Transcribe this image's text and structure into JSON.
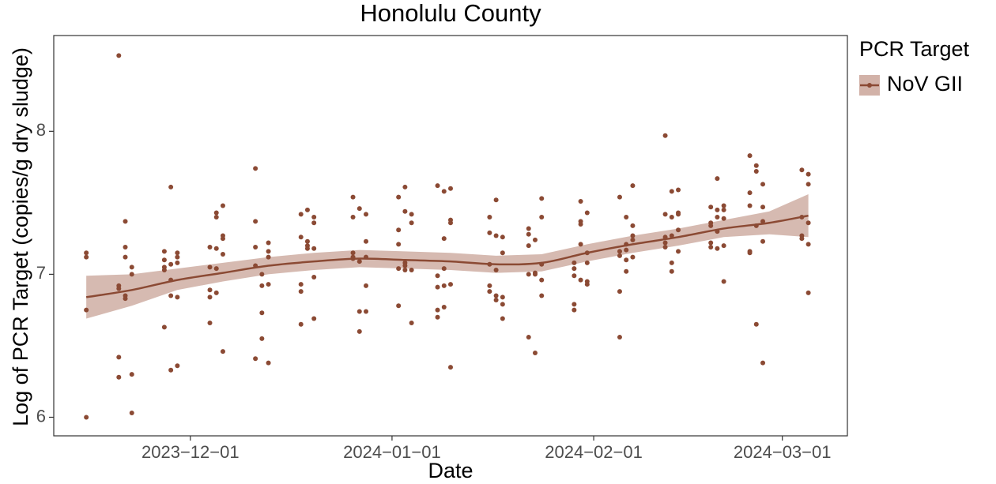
{
  "chart_data": {
    "type": "scatter-smooth",
    "title": "Honolulu County",
    "xlabel": "Date",
    "ylabel": "Log of PCR Target (copies/g dry sludge)",
    "legend_title": "PCR Target",
    "legend_position": "right",
    "xlim": [
      "2023-11-10",
      "2024-03-11"
    ],
    "xticks": [
      {
        "value": "2023-12-01",
        "label": "2023−12−01"
      },
      {
        "value": "2024-01-01",
        "label": "2024−01−01"
      },
      {
        "value": "2024-02-01",
        "label": "2024−02−01"
      },
      {
        "value": "2024-03-01",
        "label": "2024−03−01"
      }
    ],
    "ylim": [
      5.87,
      8.67
    ],
    "yticks": [
      6,
      7,
      8
    ],
    "grid": false,
    "series": [
      {
        "name": "NoV GII",
        "color": "#8b4a34",
        "band_color": "#d2b2a8",
        "x": [
          "2023-11-15",
          "2023-11-15",
          "2023-11-15",
          "2023-11-15",
          "2023-11-20",
          "2023-11-20",
          "2023-11-20",
          "2023-11-20",
          "2023-11-20",
          "2023-11-21",
          "2023-11-21",
          "2023-11-21",
          "2023-11-21",
          "2023-11-21",
          "2023-11-22",
          "2023-11-22",
          "2023-11-22",
          "2023-11-22",
          "2023-11-27",
          "2023-11-27",
          "2023-11-27",
          "2023-11-27",
          "2023-11-27",
          "2023-11-28",
          "2023-11-28",
          "2023-11-28",
          "2023-11-28",
          "2023-11-28",
          "2023-11-29",
          "2023-11-29",
          "2023-11-29",
          "2023-11-29",
          "2023-11-29",
          "2023-12-04",
          "2023-12-04",
          "2023-12-04",
          "2023-12-04",
          "2023-12-04",
          "2023-12-05",
          "2023-12-05",
          "2023-12-05",
          "2023-12-05",
          "2023-12-05",
          "2023-12-06",
          "2023-12-06",
          "2023-12-06",
          "2023-12-06",
          "2023-12-06",
          "2023-12-11",
          "2023-12-11",
          "2023-12-11",
          "2023-12-11",
          "2023-12-11",
          "2023-12-12",
          "2023-12-12",
          "2023-12-12",
          "2023-12-12",
          "2023-12-13",
          "2023-12-13",
          "2023-12-13",
          "2023-12-13",
          "2023-12-13",
          "2023-12-18",
          "2023-12-18",
          "2023-12-18",
          "2023-12-18",
          "2023-12-18",
          "2023-12-19",
          "2023-12-19",
          "2023-12-19",
          "2023-12-19",
          "2023-12-20",
          "2023-12-20",
          "2023-12-20",
          "2023-12-20",
          "2023-12-20",
          "2023-12-26",
          "2023-12-26",
          "2023-12-26",
          "2023-12-26",
          "2023-12-26",
          "2023-12-27",
          "2023-12-27",
          "2023-12-27",
          "2023-12-27",
          "2023-12-28",
          "2023-12-28",
          "2023-12-28",
          "2023-12-28",
          "2023-12-28",
          "2024-01-02",
          "2024-01-02",
          "2024-01-02",
          "2024-01-02",
          "2024-01-02",
          "2024-01-03",
          "2024-01-03",
          "2024-01-03",
          "2024-01-03",
          "2024-01-03",
          "2024-01-04",
          "2024-01-04",
          "2024-01-04",
          "2024-01-04",
          "2024-01-08",
          "2024-01-08",
          "2024-01-08",
          "2024-01-08",
          "2024-01-08",
          "2024-01-09",
          "2024-01-09",
          "2024-01-09",
          "2024-01-09",
          "2024-01-09",
          "2024-01-10",
          "2024-01-10",
          "2024-01-10",
          "2024-01-10",
          "2024-01-10",
          "2024-01-16",
          "2024-01-16",
          "2024-01-16",
          "2024-01-16",
          "2024-01-16",
          "2024-01-17",
          "2024-01-17",
          "2024-01-17",
          "2024-01-17",
          "2024-01-17",
          "2024-01-18",
          "2024-01-18",
          "2024-01-18",
          "2024-01-18",
          "2024-01-18",
          "2024-01-22",
          "2024-01-22",
          "2024-01-22",
          "2024-01-22",
          "2024-01-22",
          "2024-01-23",
          "2024-01-23",
          "2024-01-23",
          "2024-01-23",
          "2024-01-24",
          "2024-01-24",
          "2024-01-24",
          "2024-01-24",
          "2024-01-24",
          "2024-01-29",
          "2024-01-29",
          "2024-01-29",
          "2024-01-29",
          "2024-01-29",
          "2024-01-30",
          "2024-01-30",
          "2024-01-30",
          "2024-01-30",
          "2024-01-30",
          "2024-01-31",
          "2024-01-31",
          "2024-01-31",
          "2024-01-31",
          "2024-01-31",
          "2024-02-05",
          "2024-02-05",
          "2024-02-05",
          "2024-02-05",
          "2024-02-05",
          "2024-02-06",
          "2024-02-06",
          "2024-02-06",
          "2024-02-06",
          "2024-02-06",
          "2024-02-07",
          "2024-02-07",
          "2024-02-07",
          "2024-02-07",
          "2024-02-07",
          "2024-02-12",
          "2024-02-12",
          "2024-02-12",
          "2024-02-12",
          "2024-02-12",
          "2024-02-13",
          "2024-02-13",
          "2024-02-13",
          "2024-02-13",
          "2024-02-13",
          "2024-02-14",
          "2024-02-14",
          "2024-02-14",
          "2024-02-14",
          "2024-02-14",
          "2024-02-19",
          "2024-02-19",
          "2024-02-19",
          "2024-02-19",
          "2024-02-19",
          "2024-02-20",
          "2024-02-20",
          "2024-02-20",
          "2024-02-20",
          "2024-02-20",
          "2024-02-21",
          "2024-02-21",
          "2024-02-21",
          "2024-02-21",
          "2024-02-21",
          "2024-02-25",
          "2024-02-25",
          "2024-02-25",
          "2024-02-25",
          "2024-02-25",
          "2024-02-26",
          "2024-02-26",
          "2024-02-26",
          "2024-02-26",
          "2024-02-27",
          "2024-02-27",
          "2024-02-27",
          "2024-02-27",
          "2024-02-27",
          "2024-03-04",
          "2024-03-04",
          "2024-03-04",
          "2024-03-04",
          "2024-03-05",
          "2024-03-05",
          "2024-03-05",
          "2024-03-05",
          "2024-03-05"
        ],
        "values": [
          7.15,
          7.12,
          6.75,
          6.0,
          8.53,
          6.92,
          6.9,
          6.42,
          6.28,
          7.37,
          7.19,
          7.12,
          6.85,
          6.83,
          7.05,
          7.0,
          6.3,
          6.03,
          7.16,
          7.1,
          7.05,
          7.03,
          6.63,
          7.61,
          7.07,
          6.96,
          6.85,
          6.33,
          7.15,
          7.12,
          7.08,
          6.84,
          6.36,
          7.19,
          7.05,
          6.89,
          6.84,
          6.66,
          7.43,
          7.4,
          7.18,
          7.04,
          6.87,
          7.48,
          7.27,
          7.25,
          7.14,
          6.46,
          7.74,
          7.37,
          7.19,
          7.06,
          6.41,
          7.0,
          6.92,
          6.73,
          6.55,
          7.22,
          7.16,
          7.12,
          6.93,
          6.38,
          7.42,
          7.26,
          6.93,
          6.88,
          6.65,
          7.45,
          7.23,
          7.2,
          7.18,
          7.4,
          7.36,
          7.18,
          6.98,
          6.69,
          7.54,
          7.4,
          7.15,
          7.12,
          7.11,
          7.46,
          7.09,
          6.74,
          6.6,
          7.42,
          7.23,
          7.12,
          6.92,
          6.74,
          7.54,
          7.31,
          7.21,
          7.04,
          6.78,
          7.61,
          7.44,
          7.08,
          7.06,
          7.03,
          7.42,
          7.36,
          7.03,
          6.66,
          7.62,
          6.99,
          6.91,
          6.75,
          6.7,
          7.58,
          7.25,
          7.04,
          6.92,
          6.77,
          7.6,
          7.38,
          7.36,
          6.93,
          6.35,
          7.4,
          7.29,
          7.07,
          6.92,
          6.88,
          7.52,
          7.27,
          7.03,
          6.85,
          6.82,
          7.26,
          7.15,
          6.84,
          6.79,
          6.69,
          7.32,
          7.28,
          7.2,
          7.0,
          6.56,
          7.24,
          7.01,
          7.0,
          6.45,
          7.53,
          7.4,
          7.07,
          6.96,
          6.85,
          7.08,
          7.04,
          6.99,
          6.79,
          6.75,
          7.51,
          7.37,
          7.35,
          7.21,
          6.96,
          7.43,
          7.15,
          7.08,
          6.95,
          6.93,
          7.54,
          7.16,
          7.13,
          6.88,
          6.56,
          7.4,
          7.21,
          7.17,
          7.1,
          7.02,
          7.62,
          7.34,
          7.27,
          7.24,
          7.12,
          7.97,
          7.42,
          7.26,
          7.22,
          7.19,
          7.58,
          7.4,
          7.27,
          7.08,
          7.02,
          7.59,
          7.43,
          7.42,
          7.31,
          7.16,
          7.47,
          7.36,
          7.34,
          7.22,
          7.19,
          7.67,
          7.45,
          7.4,
          7.3,
          7.18,
          7.48,
          7.45,
          7.39,
          7.2,
          6.95,
          7.83,
          7.57,
          7.48,
          7.16,
          7.15,
          7.76,
          7.72,
          7.34,
          6.65,
          7.63,
          7.47,
          7.37,
          7.23,
          6.38,
          7.73,
          7.4,
          7.27,
          7.25,
          7.7,
          7.63,
          7.36,
          7.21,
          6.87
        ],
        "smooth_x": [
          "2023-11-15",
          "2023-11-22",
          "2023-11-29",
          "2023-12-06",
          "2023-12-13",
          "2023-12-20",
          "2023-12-27",
          "2024-01-03",
          "2024-01-10",
          "2024-01-17",
          "2024-01-24",
          "2024-01-31",
          "2024-02-07",
          "2024-02-14",
          "2024-02-21",
          "2024-02-28",
          "2024-03-05"
        ],
        "smooth": [
          6.84,
          6.89,
          6.96,
          7.01,
          7.06,
          7.09,
          7.11,
          7.1,
          7.09,
          7.07,
          7.08,
          7.15,
          7.21,
          7.26,
          7.32,
          7.36,
          7.41
        ],
        "smooth_lower": [
          6.69,
          6.78,
          6.89,
          6.95,
          7.0,
          7.03,
          7.05,
          7.04,
          7.03,
          7.01,
          7.02,
          7.09,
          7.15,
          7.2,
          7.26,
          7.28,
          7.26
        ],
        "smooth_upper": [
          6.99,
          7.0,
          7.04,
          7.08,
          7.12,
          7.15,
          7.17,
          7.16,
          7.15,
          7.13,
          7.14,
          7.21,
          7.27,
          7.32,
          7.38,
          7.44,
          7.56
        ]
      }
    ]
  }
}
